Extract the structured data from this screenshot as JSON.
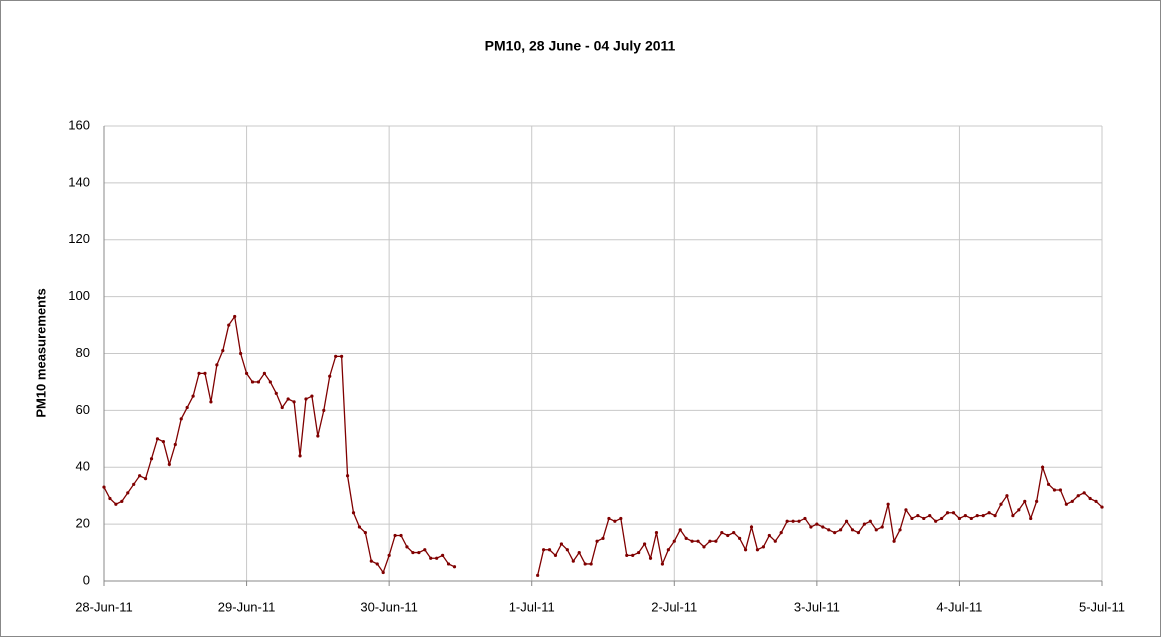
{
  "chart_data": {
    "type": "line",
    "title": "PM10, 28 June - 04 July 2011",
    "y_label": "PM10 measurements",
    "x": [
      0,
      1,
      2,
      3,
      4,
      5,
      6,
      7,
      8,
      9,
      10,
      11,
      12,
      13,
      14,
      15,
      16,
      17,
      18,
      19,
      20,
      21,
      22,
      23,
      24,
      25,
      26,
      27,
      28,
      29,
      30,
      31,
      32,
      33,
      34,
      35,
      36,
      37,
      38,
      39,
      40,
      41,
      42,
      43,
      44,
      45,
      46,
      47,
      48,
      49,
      50,
      51,
      52,
      53,
      54,
      55,
      56,
      57,
      58,
      59,
      60,
      61,
      62,
      63,
      64,
      65,
      66,
      67,
      68,
      69,
      70,
      71,
      72,
      73,
      74,
      75,
      76,
      77,
      78,
      79,
      80,
      81,
      82,
      83,
      84,
      85,
      86,
      87,
      88,
      89,
      90,
      91,
      92,
      93,
      94,
      95,
      96,
      97,
      98,
      99,
      100,
      101,
      102,
      103,
      104,
      105,
      106,
      107,
      108,
      109,
      110,
      111,
      112,
      113,
      114,
      115,
      116,
      117,
      118,
      119,
      120,
      121,
      122,
      123,
      124,
      125,
      126,
      127,
      128,
      129,
      130,
      131,
      132,
      133,
      134,
      135,
      136,
      137,
      138,
      139,
      140,
      141,
      142,
      143,
      144,
      145,
      146,
      147,
      148,
      149,
      150,
      151,
      152,
      153,
      154,
      155,
      156,
      157,
      158,
      159,
      160,
      161,
      162,
      163,
      164,
      165,
      166,
      167,
      168
    ],
    "values": [
      33,
      29,
      27,
      28,
      31,
      34,
      37,
      36,
      43,
      50,
      49,
      41,
      48,
      57,
      61,
      65,
      73,
      73,
      63,
      76,
      81,
      90,
      93,
      80,
      73,
      70,
      70,
      73,
      70,
      66,
      61,
      64,
      63,
      44,
      64,
      65,
      51,
      60,
      72,
      79,
      79,
      37,
      24,
      19,
      17,
      7,
      6,
      3,
      9,
      16,
      16,
      12,
      10,
      10,
      11,
      8,
      8,
      9,
      6,
      5,
      null,
      null,
      null,
      null,
      null,
      null,
      null,
      null,
      null,
      null,
      null,
      null,
      null,
      2,
      11,
      11,
      9,
      13,
      11,
      7,
      10,
      6,
      6,
      14,
      15,
      22,
      21,
      22,
      9,
      9,
      10,
      13,
      8,
      17,
      6,
      11,
      14,
      18,
      15,
      14,
      14,
      12,
      14,
      14,
      17,
      16,
      17,
      15,
      11,
      19,
      11,
      12,
      16,
      14,
      17,
      21,
      21,
      21,
      22,
      19,
      20,
      19,
      18,
      17,
      18,
      21,
      18,
      17,
      20,
      21,
      18,
      19,
      27,
      14,
      18,
      25,
      22,
      23,
      22,
      23,
      21,
      22,
      24,
      24,
      22,
      23,
      22,
      23,
      23,
      24,
      23,
      27,
      30,
      23,
      25,
      28,
      22,
      28,
      40,
      34,
      32,
      32,
      27,
      28,
      30,
      31,
      29,
      28,
      26
    ],
    "color": "#800000",
    "xlim": [
      0,
      168
    ],
    "xticks": [
      {
        "value": 0,
        "label": "28-Jun-11"
      },
      {
        "value": 24,
        "label": "29-Jun-11"
      },
      {
        "value": 48,
        "label": "30-Jun-11"
      },
      {
        "value": 72,
        "label": "1-Jul-11"
      },
      {
        "value": 96,
        "label": "2-Jul-11"
      },
      {
        "value": 120,
        "label": "3-Jul-11"
      },
      {
        "value": 144,
        "label": "4-Jul-11"
      },
      {
        "value": 168,
        "label": "5-Jul-11"
      }
    ],
    "ylim": [
      0,
      160
    ],
    "yticks": [
      0,
      20,
      40,
      60,
      80,
      100,
      120,
      140,
      160
    ],
    "grid": true
  }
}
